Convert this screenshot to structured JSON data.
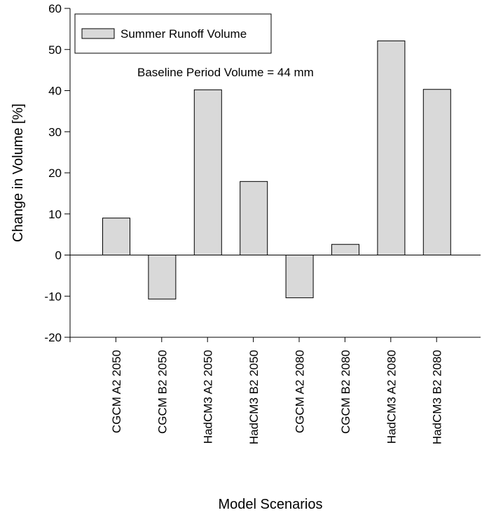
{
  "chart_data": {
    "type": "bar",
    "categories": [
      "CGCM A2 2050",
      "CGCM B2 2050",
      "HadCM3 A2 2050",
      "HadCM3 B2 2050",
      "CGCM A2 2080",
      "CGCM B2 2080",
      "HadCM3 A2 2080",
      "HadCM3 B2 2080"
    ],
    "series": [
      {
        "name": "Summer Runoff Volume",
        "values": [
          9.0,
          -10.7,
          40.2,
          17.9,
          -10.4,
          2.6,
          52.1,
          40.3
        ]
      }
    ],
    "xlabel": "Model Scenarios",
    "ylabel": "Change in Volume [%]",
    "ylim": [
      -20,
      60
    ],
    "yticks": [
      -20,
      -10,
      0,
      10,
      20,
      30,
      40,
      50,
      60
    ],
    "annotation": "Baseline Period Volume = 44 mm",
    "legend_position": "top-left",
    "grid": false,
    "bar_color": "#d9d9d9",
    "edge_color": "#000000"
  }
}
